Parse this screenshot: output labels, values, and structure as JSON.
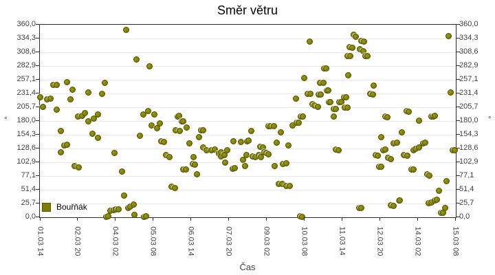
{
  "title": "Směr větru",
  "legend": {
    "label": "Bouřňák"
  },
  "x_axis": {
    "label": "Čas",
    "ticks": [
      "01.03 14",
      "02.03 20",
      "04.03 02",
      "05.03 08",
      "06.03 14",
      "07.03 20",
      "09.03 02",
      "10.03 08",
      "11.03 14",
      "12.03 20",
      "14.03 02",
      "15.03 08"
    ]
  },
  "y_axis": {
    "label_left": "°",
    "label_right": "°",
    "ticks": [
      "360,0",
      "334,3",
      "308,6",
      "282,9",
      "257,1",
      "231,4",
      "205,7",
      "180,0",
      "154,3",
      "128,6",
      "102,9",
      "77,1",
      "51,4",
      "25,7",
      "0,0"
    ]
  },
  "colors": {
    "marker": "#7d7d00",
    "marker_edge": "#4f4f00",
    "grid": "#e8e8e8",
    "axis": "#2a2a2a",
    "label": "#3f3f3f",
    "background": "#ffffff"
  },
  "chart_data": {
    "type": "scatter",
    "title": "Směr větru",
    "xlabel": "Čas",
    "ylabel": "°",
    "ylim": [
      0,
      360
    ],
    "grid": "horizontal",
    "legend_position": "bottom-left-inside",
    "x_tick_labels": [
      "01.03 14",
      "02.03 20",
      "04.03 02",
      "05.03 08",
      "06.03 14",
      "07.03 20",
      "09.03 02",
      "10.03 08",
      "11.03 14",
      "12.03 20",
      "14.03 02",
      "15.03 08"
    ],
    "y_tick_step": 25.7,
    "x_encoding": "fraction_of_axis_0_to_1",
    "series": [
      {
        "name": "Bouřňák",
        "points": [
          [
            0.0,
            224
          ],
          [
            0.008,
            206
          ],
          [
            0.018,
            221
          ],
          [
            0.025,
            222
          ],
          [
            0.033,
            248
          ],
          [
            0.04,
            248
          ],
          [
            0.041,
            201
          ],
          [
            0.05,
            161
          ],
          [
            0.051,
            122
          ],
          [
            0.058,
            135
          ],
          [
            0.066,
            136
          ],
          [
            0.066,
            253
          ],
          [
            0.073,
            221
          ],
          [
            0.078,
            238
          ],
          [
            0.084,
            96
          ],
          [
            0.093,
            93
          ],
          [
            0.091,
            188
          ],
          [
            0.101,
            190
          ],
          [
            0.109,
            195
          ],
          [
            0.116,
            233
          ],
          [
            0.117,
            180
          ],
          [
            0.127,
            156
          ],
          [
            0.129,
            185
          ],
          [
            0.139,
            149
          ],
          [
            0.14,
            192
          ],
          [
            0.15,
            231
          ],
          [
            0.157,
            251
          ],
          [
            0.159,
            1
          ],
          [
            0.165,
            2
          ],
          [
            0.17,
            12
          ],
          [
            0.177,
            13
          ],
          [
            0.183,
            15
          ],
          [
            0.19,
            15
          ],
          [
            0.18,
            120
          ],
          [
            0.197,
            86
          ],
          [
            0.203,
            41
          ],
          [
            0.208,
            350
          ],
          [
            0.213,
            17
          ],
          [
            0.218,
            20
          ],
          [
            0.225,
            24
          ],
          [
            0.228,
            5
          ],
          [
            0.233,
            295
          ],
          [
            0.241,
            152
          ],
          [
            0.248,
            192
          ],
          [
            0.25,
            1
          ],
          [
            0.256,
            2
          ],
          [
            0.26,
            199
          ],
          [
            0.264,
            282
          ],
          [
            0.268,
            172
          ],
          [
            0.276,
            192
          ],
          [
            0.281,
            167
          ],
          [
            0.288,
            176
          ],
          [
            0.291,
            142
          ],
          [
            0.299,
            141
          ],
          [
            0.304,
            117
          ],
          [
            0.311,
            113
          ],
          [
            0.317,
            57
          ],
          [
            0.324,
            55
          ],
          [
            0.327,
            163
          ],
          [
            0.331,
            189
          ],
          [
            0.334,
            190
          ],
          [
            0.336,
            162
          ],
          [
            0.341,
            180
          ],
          [
            0.345,
            180
          ],
          [
            0.344,
            90
          ],
          [
            0.352,
            89
          ],
          [
            0.353,
            168
          ],
          [
            0.359,
            138
          ],
          [
            0.367,
            100
          ],
          [
            0.372,
            99
          ],
          [
            0.37,
            113
          ],
          [
            0.377,
            81
          ],
          [
            0.383,
            150
          ],
          [
            0.387,
            163
          ],
          [
            0.392,
            163
          ],
          [
            0.393,
            130
          ],
          [
            0.4,
            126
          ],
          [
            0.412,
            125
          ],
          [
            0.42,
            127
          ],
          [
            0.43,
            119
          ],
          [
            0.435,
            114
          ],
          [
            0.436,
            122
          ],
          [
            0.443,
            117
          ],
          [
            0.446,
            102
          ],
          [
            0.45,
            125
          ],
          [
            0.464,
            91
          ],
          [
            0.466,
            142
          ],
          [
            0.469,
            92
          ],
          [
            0.483,
            141
          ],
          [
            0.488,
            108
          ],
          [
            0.494,
            96
          ],
          [
            0.496,
            117
          ],
          [
            0.499,
            142
          ],
          [
            0.501,
            144
          ],
          [
            0.509,
            162
          ],
          [
            0.512,
            114
          ],
          [
            0.519,
            113
          ],
          [
            0.526,
            116
          ],
          [
            0.532,
            113
          ],
          [
            0.529,
            132
          ],
          [
            0.536,
            131
          ],
          [
            0.539,
            121
          ],
          [
            0.545,
            120
          ],
          [
            0.55,
            118
          ],
          [
            0.549,
            170
          ],
          [
            0.555,
            170
          ],
          [
            0.562,
            170
          ],
          [
            0.565,
            96
          ],
          [
            0.57,
            139
          ],
          [
            0.575,
            62
          ],
          [
            0.583,
            63
          ],
          [
            0.579,
            159
          ],
          [
            0.585,
            100
          ],
          [
            0.592,
            101
          ],
          [
            0.593,
            59
          ],
          [
            0.6,
            58
          ],
          [
            0.598,
            135
          ],
          [
            0.607,
            172
          ],
          [
            0.615,
            222
          ],
          [
            0.617,
            177
          ],
          [
            0.623,
            177
          ],
          [
            0.625,
            2
          ],
          [
            0.63,
            1
          ],
          [
            0.628,
            189
          ],
          [
            0.633,
            188
          ],
          [
            0.636,
            261
          ],
          [
            0.643,
            231
          ],
          [
            0.65,
            231
          ],
          [
            0.648,
            328
          ],
          [
            0.655,
            212
          ],
          [
            0.661,
            209
          ],
          [
            0.668,
            206
          ],
          [
            0.671,
            230
          ],
          [
            0.676,
            230
          ],
          [
            0.674,
            251
          ],
          [
            0.681,
            251
          ],
          [
            0.683,
            279
          ],
          [
            0.689,
            278
          ],
          [
            0.69,
            237
          ],
          [
            0.694,
            237
          ],
          [
            0.695,
            215
          ],
          [
            0.699,
            216
          ],
          [
            0.706,
            203
          ],
          [
            0.711,
            202
          ],
          [
            0.707,
            188
          ],
          [
            0.712,
            127
          ],
          [
            0.719,
            126
          ],
          [
            0.72,
            215
          ],
          [
            0.724,
            216
          ],
          [
            0.732,
            225
          ],
          [
            0.737,
            225
          ],
          [
            0.733,
            205
          ],
          [
            0.739,
            205
          ],
          [
            0.742,
            266
          ],
          [
            0.754,
            341
          ],
          [
            0.76,
            337
          ],
          [
            0.773,
            330
          ],
          [
            0.78,
            328
          ],
          [
            0.745,
            318
          ],
          [
            0.752,
            317
          ],
          [
            0.77,
            314
          ],
          [
            0.777,
            311
          ],
          [
            0.74,
            302
          ],
          [
            0.747,
            301
          ],
          [
            0.782,
            302
          ],
          [
            0.788,
            301
          ],
          [
            0.803,
            246
          ],
          [
            0.795,
            231
          ],
          [
            0.8,
            230
          ],
          [
            0.767,
            18
          ],
          [
            0.772,
            17
          ],
          [
            0.807,
            117
          ],
          [
            0.812,
            115
          ],
          [
            0.815,
            94
          ],
          [
            0.82,
            94
          ],
          [
            0.82,
            150
          ],
          [
            0.826,
            126
          ],
          [
            0.831,
            127
          ],
          [
            0.831,
            188
          ],
          [
            0.836,
            187
          ],
          [
            0.838,
            111
          ],
          [
            0.843,
            109
          ],
          [
            0.843,
            22
          ],
          [
            0.85,
            21
          ],
          [
            0.851,
            138
          ],
          [
            0.858,
            140
          ],
          [
            0.863,
            32
          ],
          [
            0.866,
            31
          ],
          [
            0.871,
            159
          ],
          [
            0.876,
            117
          ],
          [
            0.883,
            115
          ],
          [
            0.881,
            199
          ],
          [
            0.886,
            197
          ],
          [
            0.893,
            90
          ],
          [
            0.898,
            89
          ],
          [
            0.899,
            126
          ],
          [
            0.904,
            128
          ],
          [
            0.911,
            131
          ],
          [
            0.912,
            181
          ],
          [
            0.921,
            138
          ],
          [
            0.926,
            139
          ],
          [
            0.931,
            80
          ],
          [
            0.936,
            78
          ],
          [
            0.934,
            27
          ],
          [
            0.941,
            28
          ],
          [
            0.941,
            189
          ],
          [
            0.946,
            188
          ],
          [
            0.95,
            190
          ],
          [
            0.949,
            32
          ],
          [
            0.954,
            33
          ],
          [
            0.96,
            50
          ],
          [
            0.965,
            8
          ],
          [
            0.97,
            8
          ],
          [
            0.974,
            17
          ],
          [
            0.977,
            68
          ],
          [
            0.982,
            339
          ],
          [
            0.987,
            233
          ],
          [
            0.992,
            126
          ],
          [
            0.997,
            125
          ]
        ]
      }
    ]
  }
}
